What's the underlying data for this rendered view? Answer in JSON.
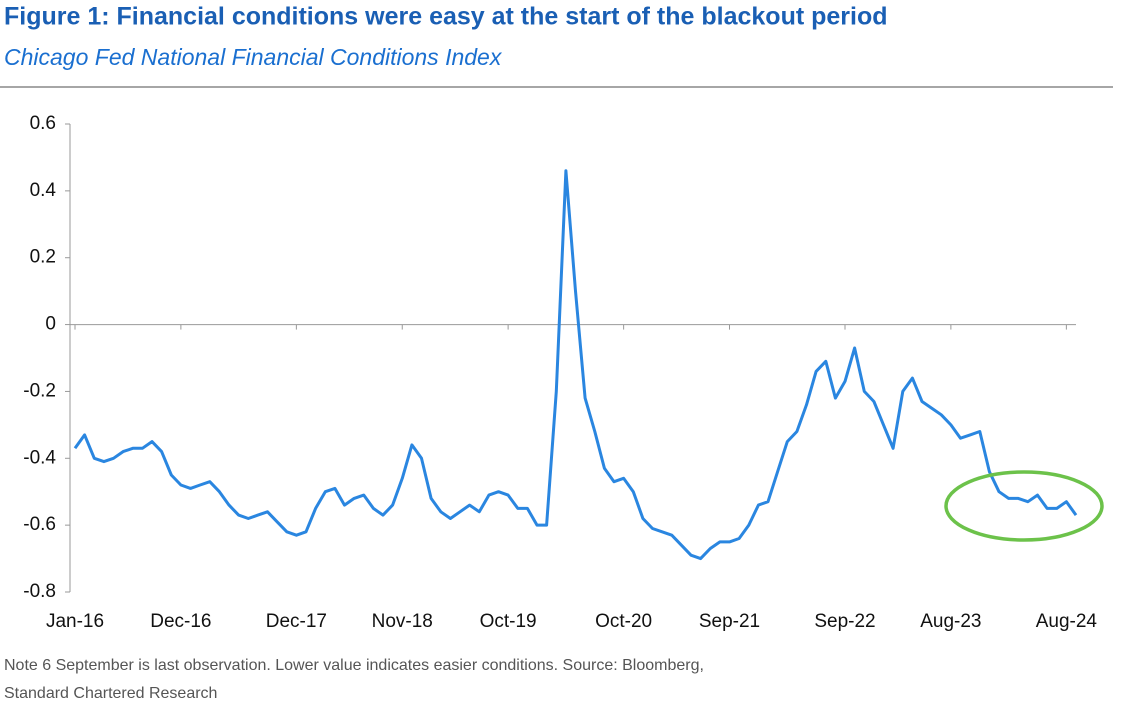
{
  "chart_data": {
    "type": "line",
    "title": "Figure 1: Financial conditions were easy at the start of the blackout period",
    "subtitle": "Chicago Fed National Financial Conditions Index",
    "categories": [
      "Jan-16",
      null,
      null,
      null,
      null,
      null,
      null,
      null,
      null,
      null,
      null,
      "Dec-16",
      null,
      null,
      null,
      null,
      null,
      null,
      null,
      null,
      null,
      null,
      null,
      "Dec-17",
      null,
      null,
      null,
      null,
      null,
      null,
      null,
      null,
      null,
      null,
      "Nov-18",
      null,
      null,
      null,
      null,
      null,
      null,
      null,
      null,
      null,
      null,
      "Oct-19",
      null,
      null,
      null,
      null,
      null,
      null,
      null,
      null,
      null,
      null,
      null,
      "Oct-20",
      null,
      null,
      null,
      null,
      null,
      null,
      null,
      null,
      null,
      null,
      "Sep-21",
      null,
      null,
      null,
      null,
      null,
      null,
      null,
      null,
      null,
      null,
      null,
      "Sep-22",
      null,
      null,
      null,
      null,
      null,
      null,
      null,
      null,
      null,
      null,
      "Aug-23",
      null,
      null,
      null,
      null,
      null,
      null,
      null,
      null,
      null,
      null,
      null,
      "Aug-24",
      null
    ],
    "series": [
      {
        "name": "Chicago Fed National Financial Conditions Index",
        "color": "#2a86e0",
        "values": [
          -0.37,
          -0.33,
          -0.4,
          -0.41,
          -0.4,
          -0.38,
          -0.37,
          -0.37,
          -0.35,
          -0.38,
          -0.45,
          -0.48,
          -0.49,
          -0.48,
          -0.47,
          -0.5,
          -0.54,
          -0.57,
          -0.58,
          -0.57,
          -0.56,
          -0.59,
          -0.62,
          -0.63,
          -0.62,
          -0.55,
          -0.5,
          -0.49,
          -0.54,
          -0.52,
          -0.51,
          -0.55,
          -0.57,
          -0.54,
          -0.46,
          -0.36,
          -0.4,
          -0.52,
          -0.56,
          -0.58,
          -0.56,
          -0.54,
          -0.56,
          -0.51,
          -0.5,
          -0.51,
          -0.55,
          -0.55,
          -0.6,
          -0.6,
          -0.2,
          0.46,
          0.1,
          -0.22,
          -0.32,
          -0.43,
          -0.47,
          -0.46,
          -0.5,
          -0.58,
          -0.61,
          -0.62,
          -0.63,
          -0.66,
          -0.69,
          -0.7,
          -0.67,
          -0.65,
          -0.65,
          -0.64,
          -0.6,
          -0.54,
          -0.53,
          -0.44,
          -0.35,
          -0.32,
          -0.24,
          -0.14,
          -0.11,
          -0.22,
          -0.17,
          -0.07,
          -0.2,
          -0.23,
          -0.3,
          -0.37,
          -0.2,
          -0.16,
          -0.23,
          -0.25,
          -0.27,
          -0.3,
          -0.34,
          -0.33,
          -0.32,
          -0.44,
          -0.5,
          -0.52,
          -0.52,
          -0.53,
          -0.51,
          -0.55,
          -0.55,
          -0.53,
          -0.57
        ]
      }
    ],
    "ylim": [
      -0.8,
      0.6
    ],
    "yticks": [
      {
        "value": -0.8,
        "label": "-0.8"
      },
      {
        "value": -0.6,
        "label": "-0.6"
      },
      {
        "value": -0.4,
        "label": "-0.4"
      },
      {
        "value": -0.2,
        "label": "-0.2"
      },
      0,
      0.2,
      0.4,
      0.6
    ],
    "grid": false,
    "notes": [
      "Note 6 September is last observation. Lower value indicates easier conditions. Source: Bloomberg,",
      "Standard Chartered Research"
    ]
  }
}
